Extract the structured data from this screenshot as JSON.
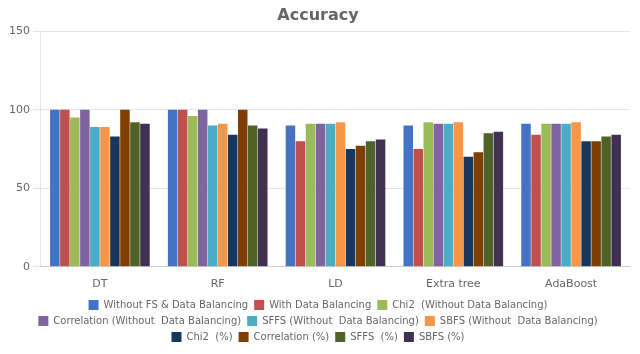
{
  "chart_data": {
    "type": "bar",
    "title": "Accuracy",
    "categories": [
      "DT",
      "RF",
      "LD",
      "Extra tree",
      "AdaBoost"
    ],
    "series": [
      {
        "name": "Without FS & Data Balancing",
        "color": "#4472C4",
        "values": [
          100,
          100,
          90,
          90,
          91
        ]
      },
      {
        "name": "With Data Balancing",
        "color": "#C0504D",
        "values": [
          100,
          100,
          80,
          75,
          84
        ]
      },
      {
        "name": "Chi2  (Without Data Balancing)",
        "color": "#9BBB59",
        "values": [
          95,
          96,
          91,
          92,
          91
        ]
      },
      {
        "name": "Correlation (Without  Data Balancing)",
        "color": "#8064A2",
        "values": [
          100,
          100,
          91,
          91,
          91
        ]
      },
      {
        "name": "SFFS (Without  Data Balancing)",
        "color": "#4BACC6",
        "values": [
          89,
          90,
          91,
          91,
          91
        ]
      },
      {
        "name": "SBFS (Without  Data Balancing)",
        "color": "#F79646",
        "values": [
          89,
          91,
          92,
          92,
          92
        ]
      },
      {
        "name": "Chi2  (%)",
        "color": "#17375E",
        "values": [
          83,
          84,
          75,
          70,
          80
        ]
      },
      {
        "name": "Correlation (%)",
        "color": "#7F3F00",
        "values": [
          100,
          100,
          77,
          73,
          80
        ]
      },
      {
        "name": "SFFS  (%)",
        "color": "#4F6228",
        "values": [
          92,
          90,
          80,
          85,
          83
        ]
      },
      {
        "name": "SBFS (%)",
        "color": "#403152",
        "values": [
          91,
          88,
          81,
          86,
          84
        ]
      }
    ],
    "ylim": [
      0,
      150
    ],
    "yticks": [
      0,
      50,
      100,
      150
    ],
    "grid": true,
    "legend": "bottom"
  }
}
